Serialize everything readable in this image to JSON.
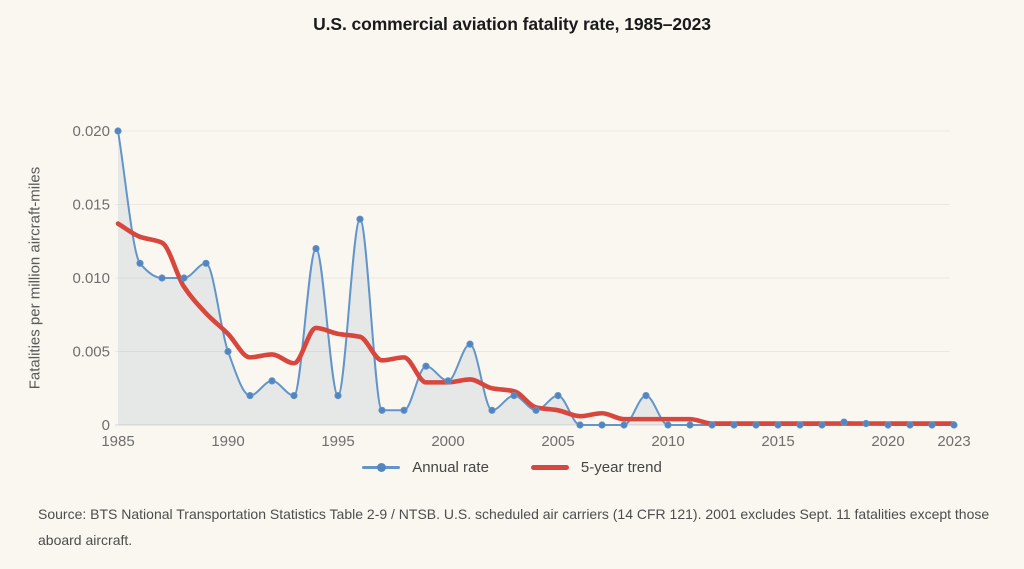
{
  "chart_data": {
    "type": "line",
    "title": "U.S. commercial aviation fatality rate, 1985–2023",
    "ylabel": "Fatalities per million aircraft-miles",
    "xlabel": "",
    "x": [
      1985,
      1986,
      1987,
      1988,
      1989,
      1990,
      1991,
      1992,
      1993,
      1994,
      1995,
      1996,
      1997,
      1998,
      1999,
      2000,
      2001,
      2002,
      2003,
      2004,
      2005,
      2006,
      2007,
      2008,
      2009,
      2010,
      2011,
      2012,
      2013,
      2014,
      2015,
      2016,
      2017,
      2018,
      2019,
      2020,
      2021,
      2022,
      2023
    ],
    "series": [
      {
        "name": "Annual rate",
        "color": "#6295C9",
        "marker_color": "#5585BE",
        "area_fill": "rgba(98,134,177,0.13)",
        "values": [
          0.02,
          0.011,
          0.01,
          0.01,
          0.011,
          0.005,
          0.002,
          0.003,
          0.002,
          0.012,
          0.002,
          0.014,
          0.001,
          0.001,
          0.004,
          0.003,
          0.0055,
          0.001,
          0.002,
          0.001,
          0.002,
          0,
          0,
          0,
          0.002,
          0,
          0,
          0,
          0,
          0,
          0,
          0,
          0,
          0.0002,
          0.0001,
          0,
          0,
          0,
          0
        ]
      },
      {
        "name": "5-year trend",
        "color": "#D8473E",
        "values": [
          0.0137,
          0.0128,
          0.0124,
          0.0094,
          0.0076,
          0.0062,
          0.0046,
          0.0048,
          0.0042,
          0.0066,
          0.0062,
          0.006,
          0.0044,
          0.0046,
          0.0029,
          0.0029,
          0.0031,
          0.0025,
          0.0023,
          0.0012,
          0.001,
          0.0006,
          0.0008,
          0.0004,
          0.0004,
          0.0004,
          0.0004,
          0.0001,
          0.0001,
          0.0001,
          0.0001,
          0.0001,
          0.0001,
          0.0001,
          0.0001,
          0.0001,
          0.0001,
          0.0001,
          0.0001
        ]
      }
    ],
    "x_ticks": [
      1985,
      1990,
      1995,
      2000,
      2005,
      2010,
      2015,
      2020,
      2023
    ],
    "y_ticks": [
      0,
      0.005,
      0.01,
      0.015,
      0.02
    ],
    "y_tick_labels": [
      "0",
      "0.005",
      "0.010",
      "0.015",
      "0.020"
    ],
    "xlim": [
      1985,
      2023
    ],
    "ylim": [
      0,
      0.02
    ],
    "grid": true,
    "legend_position": "bottom"
  },
  "footer": {
    "source": "Source: BTS National Transportation Statistics Table 2-9 / NTSB. U.S. scheduled air carriers (14 CFR 121). 2001 excludes Sept. 11 fatalities except those aboard aircraft."
  },
  "colors": {
    "background": "#FAF7F0",
    "grid": "#ECE8E0",
    "axis_line": "#DBD8D1",
    "title_text": "#1A1A1C",
    "tick_text": "#6F6F6F",
    "y_title_text": "#595959",
    "legend_text": "#454545",
    "source_text": "#4D4D4D"
  }
}
